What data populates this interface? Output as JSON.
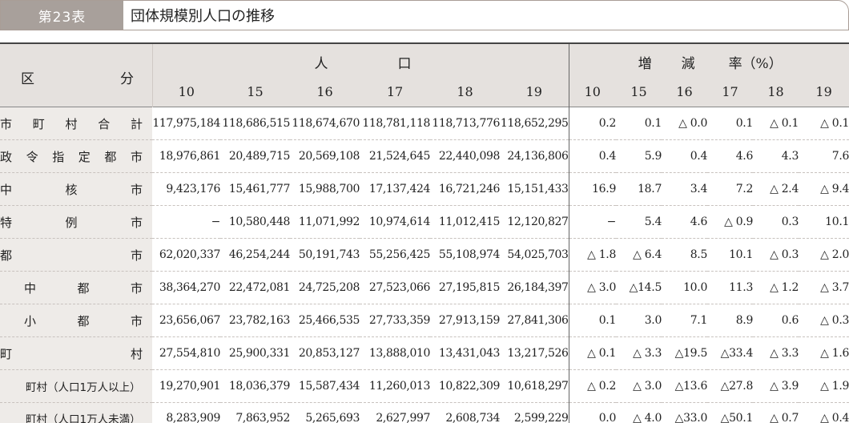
{
  "title": {
    "label": "第23表",
    "text": "団体規模別人口の推移"
  },
  "header": {
    "kubun": [
      "区",
      "分"
    ],
    "population_group": [
      "人",
      "口"
    ],
    "rate_group": [
      "増",
      "減",
      "率（%）"
    ],
    "years": [
      "10",
      "15",
      "16",
      "17",
      "18",
      "19"
    ]
  },
  "rows": [
    {
      "label": "市町村合計",
      "spread": true,
      "indent": 0,
      "population": [
        "117,975,184",
        "118,686,515",
        "118,674,670",
        "118,781,118",
        "118,713,776",
        "118,652,295"
      ],
      "rates": [
        "0.2",
        "0.1",
        "△ 0.0",
        "0.1",
        "△ 0.1",
        "△ 0.1"
      ]
    },
    {
      "label": "政令指定都市",
      "spread": true,
      "indent": 0,
      "population": [
        "18,976,861",
        "20,489,715",
        "20,569,108",
        "21,524,645",
        "22,440,098",
        "24,136,806"
      ],
      "rates": [
        "0.4",
        "5.9",
        "0.4",
        "4.6",
        "4.3",
        "7.6"
      ]
    },
    {
      "label": "中核市",
      "spread": true,
      "indent": 0,
      "population": [
        "9,423,176",
        "15,461,777",
        "15,988,700",
        "17,137,424",
        "16,721,246",
        "15,151,433"
      ],
      "rates": [
        "16.9",
        "18.7",
        "3.4",
        "7.2",
        "△ 2.4",
        "△ 9.4"
      ]
    },
    {
      "label": "特例市",
      "spread": true,
      "indent": 0,
      "population": [
        "−",
        "10,580,448",
        "11,071,992",
        "10,974,614",
        "11,012,415",
        "12,120,827"
      ],
      "rates": [
        "−",
        "5.4",
        "4.6",
        "△  0.9",
        "0.3",
        "10.1"
      ]
    },
    {
      "label": "都市",
      "spread": true,
      "indent": 0,
      "population": [
        "62,020,337",
        "46,254,244",
        "50,191,743",
        "55,256,425",
        "55,108,974",
        "54,025,703"
      ],
      "rates": [
        "△ 1.8",
        "△  6.4",
        "8.5",
        "10.1",
        "△ 0.3",
        "△ 2.0"
      ]
    },
    {
      "label": "中都市",
      "spread": true,
      "indent": 1,
      "population": [
        "38,364,270",
        "22,472,081",
        "24,725,208",
        "27,523,066",
        "27,195,815",
        "26,184,397"
      ],
      "rates": [
        "△ 3.0",
        "△14.5",
        "10.0",
        "11.3",
        "△ 1.2",
        "△ 3.7"
      ]
    },
    {
      "label": "小都市",
      "spread": true,
      "indent": 1,
      "population": [
        "23,656,067",
        "23,782,163",
        "25,466,535",
        "27,733,359",
        "27,913,159",
        "27,841,306"
      ],
      "rates": [
        "0.1",
        "3.0",
        "7.1",
        "8.9",
        "0.6",
        "△ 0.3"
      ]
    },
    {
      "label": "町村",
      "spread": true,
      "indent": 0,
      "population": [
        "27,554,810",
        "25,900,331",
        "20,853,127",
        "13,888,010",
        "13,431,043",
        "13,217,526"
      ],
      "rates": [
        "△ 0.1",
        "△  3.3",
        "△19.5",
        "△33.4",
        "△ 3.3",
        "△ 1.6"
      ]
    },
    {
      "label": "町村（人口1万人以上）",
      "spread": false,
      "indent": 2,
      "population": [
        "19,270,901",
        "18,036,379",
        "15,587,434",
        "11,260,013",
        "10,822,309",
        "10,618,297"
      ],
      "rates": [
        "△ 0.2",
        "△  3.0",
        "△13.6",
        "△27.8",
        "△ 3.9",
        "△ 1.9"
      ]
    },
    {
      "label": "町村（人口1万人未満）",
      "spread": false,
      "indent": 2,
      "population": [
        "8,283,909",
        "7,863,952",
        "5,265,693",
        "2,627,997",
        "2,608,734",
        "2,599,229"
      ],
      "rates": [
        "0.0",
        "△  4.0",
        "△33.0",
        "△50.1",
        "△ 0.7",
        "△ 0.4"
      ]
    }
  ]
}
